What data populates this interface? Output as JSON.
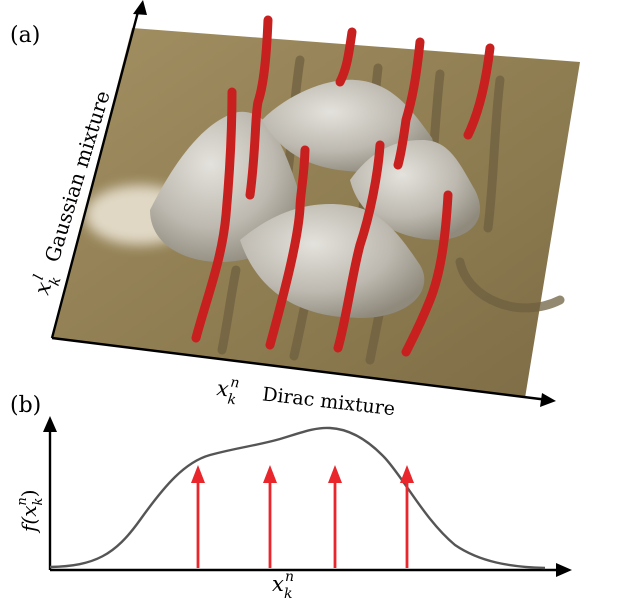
{
  "panel_a": {
    "label": "(a)",
    "axis_x_symbol": "x",
    "axis_x_sub": "k",
    "axis_x_sup": "n",
    "axis_x_name": "Dirac mixture",
    "axis_y_symbol": "x",
    "axis_y_sub": "k",
    "axis_y_sup": "l",
    "axis_y_name": "Gaussian mixture",
    "surface_color": "#9c8a5e",
    "peak_color": "#c7c4bd",
    "line_color": "#cc2222"
  },
  "panel_b": {
    "label": "(b)",
    "ylabel": "f(x",
    "ylabel_sub": "k",
    "ylabel_sup": "n",
    "ylabel_close": ")",
    "xlabel_symbol": "x",
    "xlabel_sub": "k",
    "xlabel_sup": "n",
    "curve_color": "#555555",
    "arrow_color": "#e8262b"
  }
}
